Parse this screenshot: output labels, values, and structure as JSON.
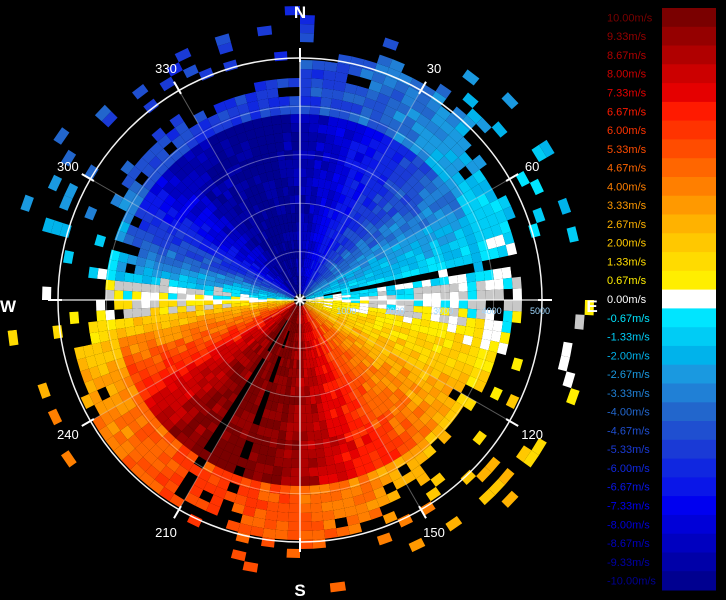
{
  "chart_data": {
    "type": "heatmap",
    "subtype": "polar-radial-velocity",
    "cardinal_labels": {
      "north": "N",
      "east": "E",
      "south": "S",
      "west": "W"
    },
    "azimuth_labels": [
      {
        "az": 30,
        "label": "30"
      },
      {
        "az": 60,
        "label": "60"
      },
      {
        "az": 120,
        "label": "120"
      },
      {
        "az": 150,
        "label": "150"
      },
      {
        "az": 210,
        "label": "210"
      },
      {
        "az": 240,
        "label": "240"
      },
      {
        "az": 300,
        "label": "300"
      },
      {
        "az": 330,
        "label": "330"
      }
    ],
    "range_labels": [
      "1000",
      "2000",
      "3000",
      "4000",
      "5000"
    ],
    "range_max": 5000,
    "grid": true,
    "legend_placement": "right",
    "colorbar": [
      {
        "label": "10.00m/s",
        "value": 10.0,
        "color": "#7a0000"
      },
      {
        "label": "9.33m/s",
        "value": 9.33,
        "color": "#950000"
      },
      {
        "label": "8.67m/s",
        "value": 8.67,
        "color": "#b00000"
      },
      {
        "label": "8.00m/s",
        "value": 8.0,
        "color": "#cc0000"
      },
      {
        "label": "7.33m/s",
        "value": 7.33,
        "color": "#e50000"
      },
      {
        "label": "6.67m/s",
        "value": 6.67,
        "color": "#ff1a00"
      },
      {
        "label": "6.00m/s",
        "value": 6.0,
        "color": "#ff3300"
      },
      {
        "label": "5.33m/s",
        "value": 5.33,
        "color": "#ff4c00"
      },
      {
        "label": "4.67m/s",
        "value": 4.67,
        "color": "#ff6600"
      },
      {
        "label": "4.00m/s",
        "value": 4.0,
        "color": "#ff7f00"
      },
      {
        "label": "3.33m/s",
        "value": 3.33,
        "color": "#ff9900"
      },
      {
        "label": "2.67m/s",
        "value": 2.67,
        "color": "#ffb200"
      },
      {
        "label": "2.00m/s",
        "value": 2.0,
        "color": "#ffc800"
      },
      {
        "label": "1.33m/s",
        "value": 1.33,
        "color": "#ffdb00"
      },
      {
        "label": "0.67m/s",
        "value": 0.67,
        "color": "#ffee00"
      },
      {
        "label": "0.00m/s",
        "value": 0.0,
        "color": "#ffffff"
      },
      {
        "label": "-0.67m/s",
        "value": -0.67,
        "color": "#00e5ff"
      },
      {
        "label": "-1.33m/s",
        "value": -1.33,
        "color": "#00ccf5"
      },
      {
        "label": "-2.00m/s",
        "value": -2.0,
        "color": "#00b3eb"
      },
      {
        "label": "-2.67m/s",
        "value": -2.67,
        "color": "#1a99e0"
      },
      {
        "label": "-3.33m/s",
        "value": -3.33,
        "color": "#2080d6"
      },
      {
        "label": "-4.00m/s",
        "value": -4.0,
        "color": "#2266cc"
      },
      {
        "label": "-4.67m/s",
        "value": -4.67,
        "color": "#1f4fd0"
      },
      {
        "label": "-5.33m/s",
        "value": -5.33,
        "color": "#1a3ad6"
      },
      {
        "label": "-6.00m/s",
        "value": -6.0,
        "color": "#1027e0"
      },
      {
        "label": "-6.67m/s",
        "value": -6.67,
        "color": "#0a16e8"
      },
      {
        "label": "-7.33m/s",
        "value": -7.33,
        "color": "#0000f0"
      },
      {
        "label": "-8.00m/s",
        "value": -8.0,
        "color": "#0000d8"
      },
      {
        "label": "-8.67m/s",
        "value": -8.67,
        "color": "#0000c0"
      },
      {
        "label": "-9.33m/s",
        "value": -9.33,
        "color": "#0000a8"
      },
      {
        "label": "-10.00m/s",
        "value": -10.0,
        "color": "#000090"
      }
    ],
    "colors": {
      "background": "#000000",
      "grid": "#ffffff",
      "range_label": "#9fd8ff",
      "no_data": "#c8c8c8"
    }
  }
}
